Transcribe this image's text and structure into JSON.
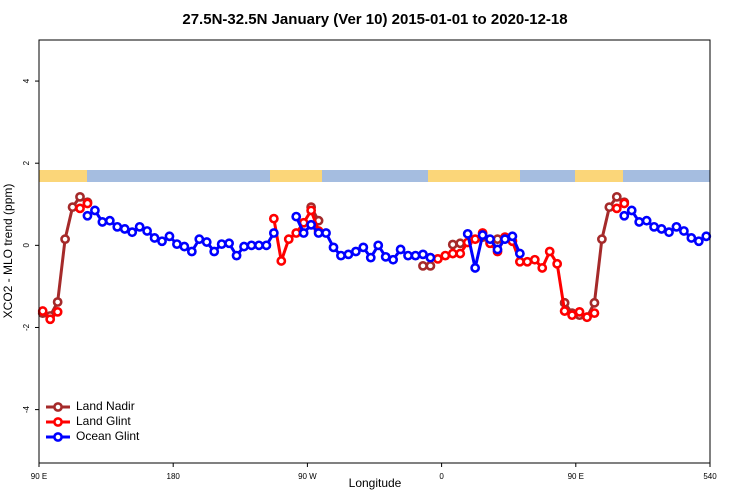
{
  "chart_data": {
    "type": "line",
    "title": "27.5N-32.5N January (Ver 10)   2015-01-01 to 2020-12-18",
    "x_label": "Longitude",
    "y_label": "XCO2 - MLO trend (ppm)",
    "xlim": [
      90,
      540
    ],
    "xticks": [
      {
        "value": 90,
        "label": "90 E"
      },
      180,
      {
        "value": 270,
        "label": "90 W"
      },
      {
        "value": 360,
        "label": "0"
      },
      {
        "value": 450,
        "label": "90 E"
      },
      540
    ],
    "ylim": [
      -5.3,
      5.0
    ],
    "yticks": [
      -4,
      -2,
      0,
      2,
      4
    ],
    "legend": "bottom-left",
    "series": [
      {
        "name": "Land Nadir",
        "color": "#a52a2a",
        "x": [
          92.5,
          97.5,
          102.5,
          107.5,
          112.5,
          117.5,
          122.5,
          127.5,
          272.5,
          277.5,
          282.5,
          347.5,
          352.5,
          357.5,
          367.5,
          372.5,
          377.5,
          387.5,
          392.5,
          397.5,
          402.5,
          437.5,
          442.5,
          447.5,
          452.5,
          457.5,
          462.5,
          467.5,
          472.5,
          477.5,
          482.5
        ],
        "values": [
          -1.65,
          -1.72,
          -1.38,
          0.15,
          0.93,
          1.18,
          1.05,
          null,
          0.93,
          0.6,
          null,
          -0.5,
          -0.5,
          null,
          0.02,
          0.05,
          null,
          0.2,
          0.1,
          0.15,
          null,
          null,
          -1.4,
          -1.65,
          -1.7,
          -1.75,
          -1.4,
          0.15,
          0.93,
          1.18,
          1.05
        ]
      },
      {
        "name": "Land Glint",
        "color": "#ff0000",
        "x": [
          92.5,
          97.5,
          102.5,
          107.5,
          117.5,
          122.5,
          127.5,
          247.5,
          252.5,
          257.5,
          262.5,
          267.5,
          272.5,
          277.5,
          282.5,
          352.5,
          357.5,
          362.5,
          367.5,
          372.5,
          377.5,
          382.5,
          387.5,
          392.5,
          397.5,
          402.5,
          407.5,
          412.5,
          417.5,
          422.5,
          427.5,
          432.5,
          437.5,
          442.5,
          447.5,
          452.5,
          457.5,
          462.5,
          467.5,
          477.5,
          482.5
        ],
        "values": [
          -1.6,
          -1.8,
          -1.62,
          null,
          0.9,
          1.02,
          null,
          0.65,
          -0.38,
          0.15,
          0.3,
          0.55,
          0.85,
          0.35,
          null,
          -0.3,
          -0.33,
          -0.25,
          -0.2,
          -0.2,
          0.07,
          0.15,
          0.3,
          0.05,
          -0.15,
          0.2,
          0.1,
          -0.4,
          -0.4,
          -0.35,
          -0.55,
          -0.15,
          -0.45,
          -1.6,
          -1.7,
          -1.62,
          -1.75,
          -1.65,
          null,
          0.9,
          1.02
        ]
      },
      {
        "name": "Ocean Glint",
        "color": "#0000ff",
        "x": [
          122.5,
          127.5,
          132.5,
          137.5,
          142.5,
          147.5,
          152.5,
          157.5,
          162.5,
          167.5,
          172.5,
          177.5,
          182.5,
          187.5,
          192.5,
          197.5,
          202.5,
          207.5,
          212.5,
          217.5,
          222.5,
          227.5,
          232.5,
          237.5,
          242.5,
          247.5,
          252.5,
          262.5,
          267.5,
          272.5,
          277.5,
          282.5,
          287.5,
          292.5,
          297.5,
          302.5,
          307.5,
          312.5,
          317.5,
          322.5,
          327.5,
          332.5,
          337.5,
          342.5,
          347.5,
          352.5,
          357.5,
          377.5,
          382.5,
          387.5,
          392.5,
          397.5,
          402.5,
          407.5,
          412.5,
          417.5,
          482.5,
          487.5,
          492.5,
          497.5,
          502.5,
          507.5,
          512.5,
          517.5,
          522.5,
          527.5,
          532.5,
          537.5
        ],
        "values": [
          0.72,
          0.85,
          0.57,
          0.6,
          0.45,
          0.4,
          0.32,
          0.45,
          0.35,
          0.18,
          0.1,
          0.22,
          0.03,
          -0.03,
          -0.15,
          0.15,
          0.08,
          -0.15,
          0.03,
          0.05,
          -0.25,
          -0.03,
          0,
          0,
          0,
          0.3,
          null,
          0.7,
          0.3,
          0.5,
          0.3,
          0.3,
          -0.05,
          -0.25,
          -0.22,
          -0.15,
          -0.05,
          -0.3,
          0,
          -0.28,
          -0.35,
          -0.1,
          -0.25,
          -0.25,
          -0.22,
          -0.3,
          null,
          0.28,
          -0.55,
          0.25,
          0.15,
          -0.1,
          0.15,
          0.22,
          -0.2,
          null,
          0.72,
          0.85,
          0.57,
          0.6,
          0.45,
          0.4,
          0.32,
          0.45,
          0.35,
          0.18,
          0.1,
          0.22
        ]
      }
    ]
  }
}
